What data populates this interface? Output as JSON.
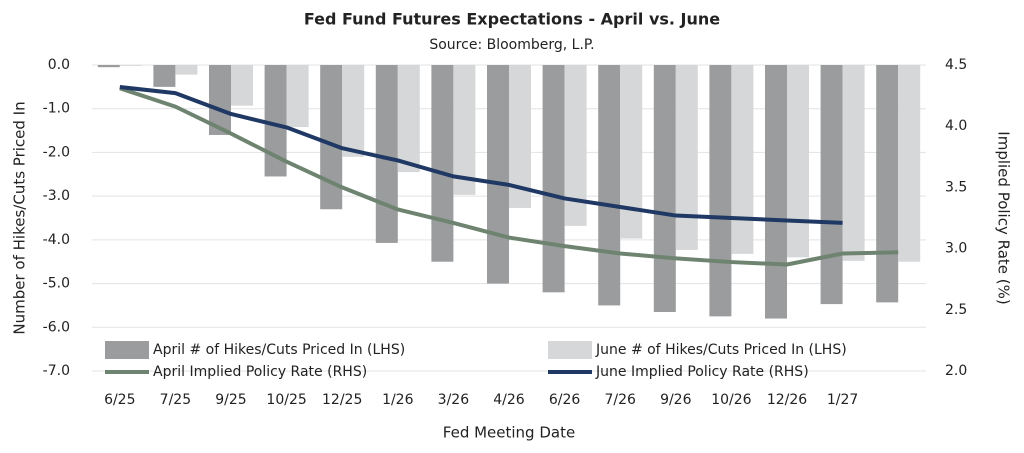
{
  "chart_data": {
    "type": "bar",
    "title": "Fed Fund Futures Expectations - April vs. June",
    "subtitle": "Source: Bloomberg, L.P.",
    "x_label": "Fed Meeting Date",
    "y_label": "Number of Hikes/Cuts Priced In",
    "y2_label": "Implied Policy Rate (%)",
    "categories": [
      "6/25",
      "7/25",
      "9/25",
      "10/25",
      "12/25",
      "1/26",
      "3/26",
      "4/26",
      "6/26",
      "7/26",
      "9/26",
      "10/26",
      "12/26",
      "1/27",
      null
    ],
    "series": [
      {
        "name": "April # of Hikes/Cuts Priced In (LHS)",
        "type": "bar",
        "color": "#9a9c9d",
        "values": [
          -0.05,
          -0.5,
          -1.6,
          -2.55,
          -3.3,
          -4.07,
          -4.5,
          -5.0,
          -5.2,
          -5.5,
          -5.65,
          -5.75,
          -5.8,
          -5.47,
          -5.43
        ]
      },
      {
        "name": "June # of Hikes/Cuts Priced In (LHS)",
        "type": "bar",
        "color": "#d6d7d8",
        "values": [
          -0.02,
          -0.22,
          -0.93,
          -1.42,
          -2.1,
          -2.45,
          -2.97,
          -3.27,
          -3.68,
          -3.97,
          -4.23,
          -4.32,
          -4.4,
          -4.48,
          -4.5
        ]
      },
      {
        "name": "April Implied Policy Rate (RHS)",
        "type": "line",
        "axis": "y2",
        "color": "#6e8470",
        "values": [
          4.31,
          4.16,
          3.94,
          3.71,
          3.5,
          3.32,
          3.21,
          3.09,
          3.02,
          2.96,
          2.92,
          2.89,
          2.87,
          2.96,
          2.97
        ]
      },
      {
        "name": "June Implied Policy Rate (RHS)",
        "type": "line",
        "axis": "y2",
        "color": "#1f3864",
        "values": [
          4.32,
          4.27,
          4.1,
          3.99,
          3.82,
          3.72,
          3.59,
          3.52,
          3.41,
          3.34,
          3.27,
          3.25,
          3.23,
          3.21,
          null
        ]
      }
    ],
    "ylim": [
      -7,
      0
    ],
    "yticks": [
      {
        "value": 0,
        "label": "0.0"
      },
      {
        "value": -1,
        "label": "-1.0"
      },
      {
        "value": -2,
        "label": "-2.0"
      },
      {
        "value": -3,
        "label": "-3.0"
      },
      {
        "value": -4,
        "label": "-4.0"
      },
      {
        "value": -5,
        "label": "-5.0"
      },
      {
        "value": -6,
        "label": "-6.0"
      },
      {
        "value": -7,
        "label": "-7.0"
      }
    ],
    "y2lim": [
      2,
      4.5
    ],
    "y2ticks": [
      4.5,
      {
        "value": 4,
        "label": "4.0"
      },
      3.5,
      {
        "value": 3,
        "label": "3.0"
      },
      2.5,
      {
        "value": 2,
        "label": "2.0"
      }
    ],
    "grid": true
  }
}
